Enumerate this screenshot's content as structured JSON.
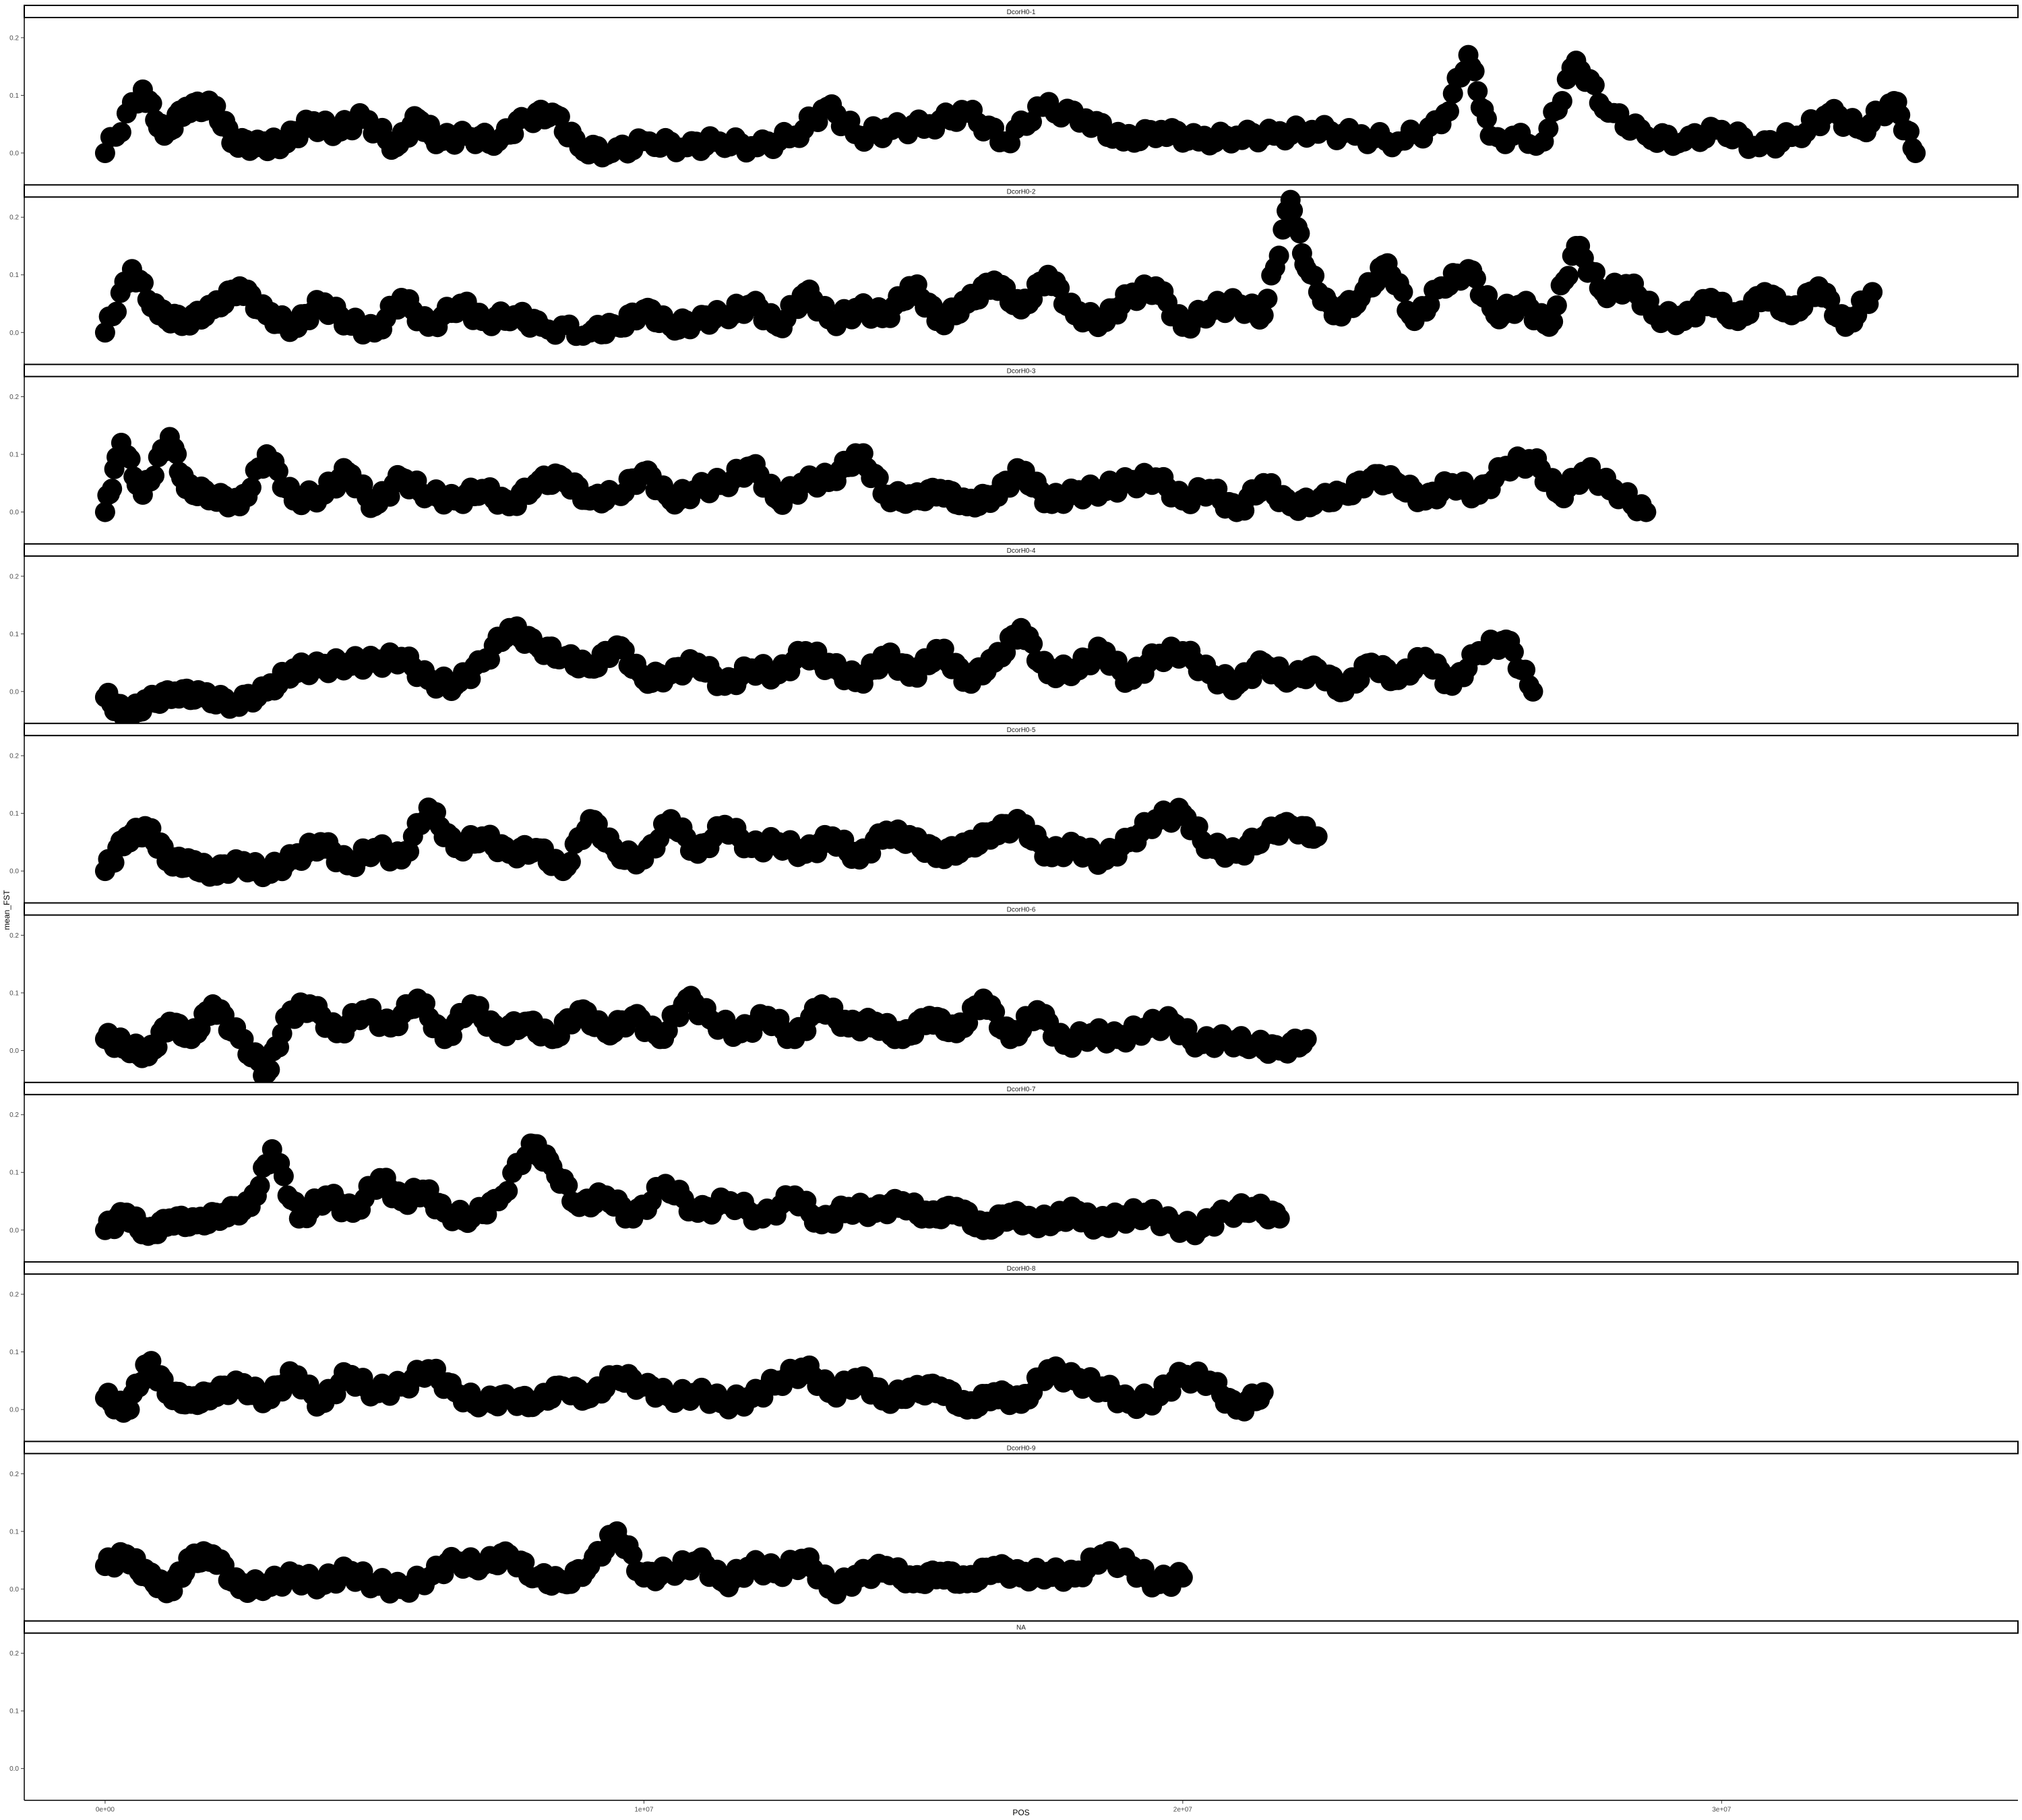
{
  "chart_data": {
    "type": "scatter",
    "xlabel": "POS",
    "ylabel": "mean_FST",
    "x_ticks": [
      0,
      10000000,
      20000000,
      30000000
    ],
    "x_tick_labels": [
      "0e+00",
      "1e+07",
      "2e+07",
      "3e+07"
    ],
    "xlim": [
      -1500000,
      35500000
    ],
    "y_ticks": [
      0.0,
      0.1,
      0.2
    ],
    "y_tick_labels": [
      "0.0",
      "0.1",
      "0.2"
    ],
    "ylim": [
      -0.055,
      0.235
    ],
    "point_color": "#000000",
    "panel_border": "#000000",
    "panels": [
      {
        "label": "DcorH0-1",
        "x": [
          0,
          700000,
          1100000,
          1500000,
          2000000,
          2400000,
          2900000,
          3300000,
          3800000,
          4300000,
          4800000,
          5400000,
          5800000,
          6200000,
          6700000,
          7300000,
          7800000,
          8300000,
          8800000,
          9400000,
          10100000,
          10800000,
          11400000,
          12100000,
          12800000,
          13400000,
          14000000,
          14600000,
          15300000,
          16000000,
          16700000,
          17400000,
          18200000,
          18900000,
          19600000,
          20300000,
          21000000,
          21700000,
          22400000,
          23200000,
          24000000,
          24800000,
          25300000,
          25700000,
          26700000,
          27300000,
          27900000,
          28600000,
          29300000,
          30000000,
          30700000,
          31400000,
          32000000,
          32600000,
          33200000,
          33600000
        ],
        "y": [
          0.0,
          0.11,
          0.03,
          0.08,
          0.08,
          0.02,
          0.01,
          0.02,
          0.05,
          0.04,
          0.06,
          0.01,
          0.06,
          0.02,
          0.03,
          0.02,
          0.06,
          0.07,
          0.01,
          0.0,
          0.02,
          0.01,
          0.02,
          0.01,
          0.03,
          0.08,
          0.03,
          0.04,
          0.05,
          0.07,
          0.02,
          0.08,
          0.06,
          0.02,
          0.04,
          0.02,
          0.03,
          0.03,
          0.04,
          0.03,
          0.02,
          0.05,
          0.17,
          0.03,
          0.02,
          0.16,
          0.07,
          0.03,
          0.02,
          0.04,
          0.01,
          0.03,
          0.07,
          0.04,
          0.09,
          0.0
        ]
      },
      {
        "label": "DcorH0-2",
        "x": [
          0,
          500000,
          1000000,
          1500000,
          2000000,
          2500000,
          3000000,
          3500000,
          4000000,
          4500000,
          5000000,
          5500000,
          6000000,
          6600000,
          7000000,
          7600000,
          8100000,
          9000000,
          9500000,
          10000000,
          10500000,
          11000000,
          11500000,
          12000000,
          12500000,
          13000000,
          13500000,
          14000000,
          14500000,
          15000000,
          15500000,
          16000000,
          16500000,
          17000000,
          17500000,
          18000000,
          18500000,
          19000000,
          19500000,
          20000000,
          20500000,
          21000000,
          21500000,
          22000000,
          22300000,
          22800000,
          23300000,
          23800000,
          24300000,
          24800000,
          25300000,
          25800000,
          26300000,
          26800000,
          27300000,
          27800000,
          28300000,
          28800000,
          29300000,
          29800000,
          30300000,
          30800000,
          31300000,
          31800000,
          32300000,
          32800000
        ],
        "y": [
          0.0,
          0.11,
          0.03,
          0.02,
          0.04,
          0.08,
          0.03,
          0.01,
          0.05,
          0.02,
          0.0,
          0.06,
          0.01,
          0.05,
          0.02,
          0.03,
          0.01,
          0.0,
          0.01,
          0.04,
          0.01,
          0.02,
          0.03,
          0.05,
          0.01,
          0.07,
          0.02,
          0.04,
          0.03,
          0.08,
          0.02,
          0.05,
          0.09,
          0.04,
          0.1,
          0.03,
          0.02,
          0.06,
          0.08,
          0.01,
          0.04,
          0.05,
          0.03,
          0.23,
          0.11,
          0.03,
          0.06,
          0.12,
          0.02,
          0.08,
          0.11,
          0.03,
          0.05,
          0.01,
          0.15,
          0.07,
          0.08,
          0.03,
          0.02,
          0.06,
          0.02,
          0.07,
          0.03,
          0.08,
          0.01,
          0.07
        ]
      },
      {
        "label": "DcorH0-3",
        "x": [
          0,
          300000,
          700000,
          1200000,
          1500000,
          2000000,
          2500000,
          3000000,
          3500000,
          4000000,
          4500000,
          5000000,
          5500000,
          6000000,
          6500000,
          7000000,
          7500000,
          8000000,
          8500000,
          9000000,
          9500000,
          10000000,
          10500000,
          11000000,
          11500000,
          12000000,
          12500000,
          13000000,
          13500000,
          14000000,
          14500000,
          15000000,
          15500000,
          16000000,
          16500000,
          17000000,
          17500000,
          18000000,
          18500000,
          19000000,
          19500000,
          20000000,
          20500000,
          21000000,
          21500000,
          22000000,
          22500000,
          23000000,
          23500000,
          24000000,
          24500000,
          25000000,
          25500000,
          26000000,
          26500000,
          27000000,
          27500000,
          28000000,
          28600000
        ],
        "y": [
          0.0,
          0.12,
          0.03,
          0.13,
          0.04,
          0.03,
          0.01,
          0.1,
          0.02,
          0.03,
          0.07,
          0.01,
          0.06,
          0.03,
          0.02,
          0.04,
          0.01,
          0.05,
          0.06,
          0.02,
          0.03,
          0.07,
          0.02,
          0.04,
          0.05,
          0.08,
          0.02,
          0.05,
          0.06,
          0.1,
          0.03,
          0.02,
          0.04,
          0.01,
          0.03,
          0.07,
          0.02,
          0.03,
          0.04,
          0.05,
          0.06,
          0.02,
          0.04,
          0.0,
          0.05,
          0.01,
          0.02,
          0.03,
          0.06,
          0.05,
          0.02,
          0.05,
          0.03,
          0.08,
          0.09,
          0.03,
          0.07,
          0.04,
          0.0
        ]
      },
      {
        "label": "DcorH0-4",
        "x": [
          0,
          400000,
          800000,
          1300000,
          1800000,
          2400000,
          3000000,
          3500000,
          4000000,
          4500000,
          5000000,
          5500000,
          6000000,
          6500000,
          7000000,
          7500000,
          8000000,
          8500000,
          9000000,
          9500000,
          10000000,
          10500000,
          11000000,
          11500000,
          12000000,
          12500000,
          13000000,
          13500000,
          14000000,
          14500000,
          15000000,
          15500000,
          16000000,
          16500000,
          17000000,
          17500000,
          18000000,
          18500000,
          19000000,
          19500000,
          20000000,
          20500000,
          21000000,
          21500000,
          22000000,
          22500000,
          23000000,
          23500000,
          24000000,
          24500000,
          25000000,
          25500000,
          26000000,
          26500000
        ],
        "y": [
          -0.01,
          -0.04,
          -0.02,
          0.0,
          -0.01,
          -0.02,
          0.0,
          0.04,
          0.04,
          0.05,
          0.05,
          0.06,
          0.02,
          0.01,
          0.05,
          0.11,
          0.08,
          0.06,
          0.04,
          0.08,
          0.02,
          0.03,
          0.05,
          0.01,
          0.04,
          0.03,
          0.07,
          0.04,
          0.02,
          0.06,
          0.03,
          0.07,
          0.02,
          0.05,
          0.11,
          0.03,
          0.04,
          0.07,
          0.02,
          0.06,
          0.07,
          0.03,
          0.01,
          0.05,
          0.02,
          0.04,
          0.0,
          0.05,
          0.02,
          0.06,
          0.01,
          0.07,
          0.09,
          0.0
        ]
      },
      {
        "label": "DcorH0-5",
        "x": [
          0,
          400000,
          800000,
          1200000,
          1600000,
          2000000,
          2500000,
          3000000,
          3500000,
          4000000,
          4500000,
          5000000,
          5500000,
          6000000,
          6500000,
          7000000,
          7500000,
          8000000,
          8500000,
          9000000,
          9500000,
          10000000,
          10500000,
          11000000,
          11500000,
          12000000,
          12500000,
          13000000,
          13500000,
          14000000,
          14500000,
          15000000,
          15500000,
          16000000,
          16500000,
          17000000,
          17500000,
          18000000,
          18500000,
          19000000,
          19500000,
          20000000,
          20500000,
          21000000,
          21500000,
          22000000,
          22500000
        ],
        "y": [
          0.0,
          0.06,
          0.07,
          0.02,
          0.01,
          0.0,
          0.01,
          0.0,
          0.02,
          0.05,
          0.01,
          0.04,
          0.02,
          0.11,
          0.04,
          0.06,
          0.03,
          0.04,
          0.0,
          0.09,
          0.03,
          0.02,
          0.09,
          0.03,
          0.08,
          0.04,
          0.05,
          0.03,
          0.06,
          0.02,
          0.07,
          0.05,
          0.03,
          0.04,
          0.07,
          0.08,
          0.03,
          0.04,
          0.02,
          0.05,
          0.09,
          0.1,
          0.04,
          0.03,
          0.06,
          0.08,
          0.06
        ]
      },
      {
        "label": "DcorH0-6",
        "x": [
          0,
          400000,
          800000,
          1200000,
          1600000,
          2000000,
          2500000,
          3000000,
          3400000,
          3800000,
          4300000,
          4800000,
          5300000,
          5800000,
          6300000,
          6800000,
          7300000,
          7800000,
          8300000,
          8800000,
          9300000,
          9800000,
          10300000,
          10800000,
          11300000,
          11800000,
          12300000,
          12800000,
          13300000,
          13800000,
          14300000,
          14800000,
          15300000,
          15800000,
          16300000,
          16800000,
          17300000,
          17800000,
          18300000,
          18800000,
          19300000,
          19800000,
          20300000,
          20800000,
          21300000,
          21800000,
          22300000
        ],
        "y": [
          0.02,
          0.01,
          -0.01,
          0.05,
          0.02,
          0.08,
          0.02,
          -0.04,
          0.06,
          0.08,
          0.03,
          0.07,
          0.04,
          0.09,
          0.02,
          0.08,
          0.03,
          0.05,
          0.02,
          0.07,
          0.03,
          0.06,
          0.02,
          0.09,
          0.05,
          0.03,
          0.06,
          0.02,
          0.08,
          0.04,
          0.05,
          0.02,
          0.06,
          0.03,
          0.09,
          0.02,
          0.07,
          0.01,
          0.03,
          0.02,
          0.04,
          0.05,
          0.01,
          0.02,
          0.01,
          0.0,
          0.02
        ]
      },
      {
        "label": "DcorH0-7",
        "x": [
          0,
          400000,
          800000,
          1200000,
          1700000,
          2200000,
          2700000,
          3100000,
          3600000,
          4100000,
          4600000,
          5100000,
          5500000,
          5900000,
          6300000,
          6800000,
          7300000,
          7900000,
          8300000,
          8800000,
          9300000,
          9800000,
          10400000,
          11000000,
          11600000,
          12200000,
          12800000,
          13300000,
          13800000,
          14300000,
          14800000,
          15300000,
          15800000,
          16300000,
          16800000,
          17200000,
          17600000,
          18000000,
          18400000,
          18800000,
          19300000,
          19800000,
          20300000,
          20800000,
          21300000,
          21800000
        ],
        "y": [
          0.0,
          0.03,
          -0.01,
          0.02,
          0.01,
          0.03,
          0.04,
          0.14,
          0.02,
          0.06,
          0.03,
          0.09,
          0.05,
          0.07,
          0.03,
          0.02,
          0.05,
          0.15,
          0.11,
          0.04,
          0.06,
          0.02,
          0.08,
          0.03,
          0.05,
          0.02,
          0.06,
          0.01,
          0.04,
          0.03,
          0.05,
          0.02,
          0.04,
          0.0,
          0.03,
          0.01,
          0.02,
          0.03,
          0.01,
          0.02,
          0.03,
          0.01,
          0.0,
          0.03,
          0.04,
          0.02
        ]
      },
      {
        "label": "DcorH0-8",
        "x": [
          0,
          400000,
          800000,
          1200000,
          1600000,
          2000000,
          2500000,
          3000000,
          3500000,
          4000000,
          4500000,
          5000000,
          5500000,
          6000000,
          6500000,
          7000000,
          7500000,
          8000000,
          8500000,
          9000000,
          9500000,
          10000000,
          10500000,
          11000000,
          11500000,
          12000000,
          12500000,
          13000000,
          13500000,
          14000000,
          14500000,
          15000000,
          15500000,
          16000000,
          16500000,
          17000000,
          17500000,
          18000000,
          18500000,
          19000000,
          19500000,
          20000000,
          20500000,
          21000000,
          21500000
        ],
        "y": [
          0.02,
          0.0,
          0.08,
          0.03,
          0.01,
          0.03,
          0.04,
          0.02,
          0.06,
          0.01,
          0.06,
          0.03,
          0.04,
          0.07,
          0.03,
          0.01,
          0.02,
          0.01,
          0.04,
          0.02,
          0.06,
          0.04,
          0.02,
          0.03,
          0.01,
          0.02,
          0.05,
          0.07,
          0.03,
          0.05,
          0.02,
          0.03,
          0.04,
          0.0,
          0.03,
          0.01,
          0.07,
          0.05,
          0.04,
          0.01,
          0.02,
          0.06,
          0.05,
          0.0,
          0.03
        ]
      },
      {
        "label": "DcorH0-9",
        "x": [
          0,
          400000,
          800000,
          1200000,
          1600000,
          2000000,
          2500000,
          3000000,
          3500000,
          4000000,
          4500000,
          5000000,
          5500000,
          6000000,
          6500000,
          7000000,
          7500000,
          8000000,
          8500000,
          9000000,
          9500000,
          10000000,
          10500000,
          11000000,
          11500000,
          12000000,
          12500000,
          13000000,
          13500000,
          14000000,
          14500000,
          15000000,
          15500000,
          16000000,
          16500000,
          17000000,
          17500000,
          18000000,
          18500000,
          19000000,
          19500000,
          20000000
        ],
        "y": [
          0.04,
          0.06,
          0.02,
          0.0,
          0.05,
          0.06,
          0.0,
          0.01,
          0.02,
          0.01,
          0.03,
          0.01,
          0.0,
          0.02,
          0.05,
          0.04,
          0.06,
          0.02,
          0.01,
          0.04,
          0.1,
          0.02,
          0.03,
          0.05,
          0.01,
          0.04,
          0.03,
          0.05,
          0.0,
          0.02,
          0.04,
          0.01,
          0.03,
          0.01,
          0.04,
          0.02,
          0.03,
          0.02,
          0.06,
          0.04,
          0.01,
          0.02
        ]
      },
      {
        "label": "NA",
        "x": [],
        "y": []
      }
    ]
  }
}
